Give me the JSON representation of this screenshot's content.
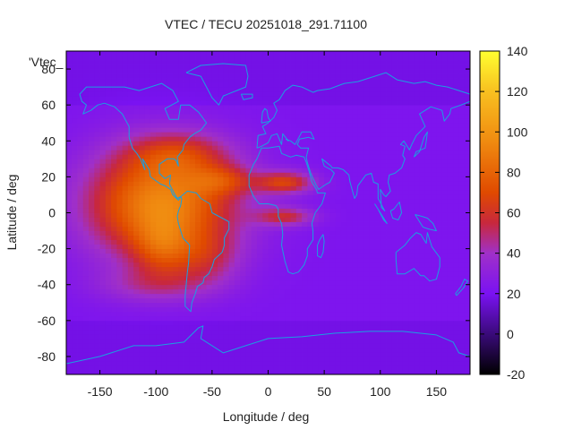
{
  "chart_data": {
    "type": "heatmap",
    "title": "VTEC / TECU 20251018_291.71100",
    "xlabel": "Longitude / deg",
    "ylabel": "Latitude / deg",
    "xlim": [
      -180,
      180
    ],
    "ylim": [
      -90,
      90
    ],
    "xticks": [
      -150,
      -100,
      -50,
      0,
      50,
      100,
      150
    ],
    "yticks": [
      -80,
      -60,
      -40,
      -20,
      0,
      20,
      40,
      60,
      80
    ],
    "colorbar": {
      "min": -20,
      "max": 140,
      "ticks": [
        -20,
        0,
        20,
        40,
        60,
        80,
        100,
        120,
        140
      ],
      "colors": [
        "#000000",
        "#3a0a7a",
        "#7a12f2",
        "#a030c8",
        "#c8283c",
        "#e04a00",
        "#f08a10",
        "#f8c020",
        "#ffff30"
      ],
      "stops": [
        -20,
        0,
        20,
        40,
        55,
        70,
        95,
        120,
        140
      ]
    },
    "series_label": "'Vtec_",
    "background_vtec": 22,
    "blobs": [
      {
        "lon": -95,
        "lat": 5,
        "slon": 65,
        "slat": 30,
        "amp": 72
      },
      {
        "lon": -95,
        "lat": -20,
        "slon": 25,
        "slat": 15,
        "amp": 25
      },
      {
        "lon": -55,
        "lat": -25,
        "slon": 30,
        "slat": 15,
        "amp": 20
      },
      {
        "lon": -40,
        "lat": 18,
        "slon": 28,
        "slat": 8,
        "amp": 25
      },
      {
        "lon": 15,
        "lat": 17,
        "slon": 25,
        "slat": 6,
        "amp": 42
      },
      {
        "lon": 15,
        "lat": -2,
        "slon": 25,
        "slat": 5,
        "amp": 32
      },
      {
        "lon": -80,
        "lat": 33,
        "slon": 45,
        "slat": 12,
        "amp": 25
      },
      {
        "lon": -100,
        "lat": -40,
        "slon": 50,
        "slat": 10,
        "amp": 18
      }
    ]
  }
}
